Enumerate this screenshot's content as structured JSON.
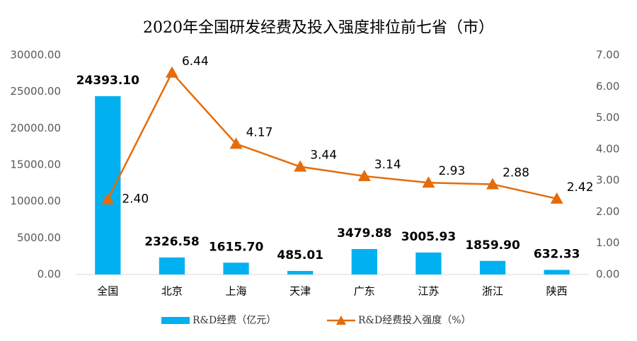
{
  "chart_data": {
    "type": "combo",
    "title": "2020年全国研发经费及投入强度排位前七省（市）",
    "categories": [
      "全国",
      "北京",
      "上海",
      "天津",
      "广东",
      "江苏",
      "浙江",
      "陕西"
    ],
    "series": [
      {
        "name": "R&D经费（亿元）",
        "type": "bar",
        "color": "#00b0f0",
        "values": [
          24393.1,
          2326.58,
          1615.7,
          485.01,
          3479.88,
          3005.93,
          1859.9,
          632.33
        ],
        "value_labels": [
          "24393.10",
          "2326.58",
          "1615.70",
          "485.01",
          "3479.88",
          "3005.93",
          "1859.90",
          "632.33"
        ]
      },
      {
        "name": "R&D经费投入强度（%）",
        "type": "line",
        "axis": "y2",
        "color": "#e46c0a",
        "values": [
          2.4,
          6.44,
          4.17,
          3.44,
          3.14,
          2.93,
          2.88,
          2.42
        ],
        "value_labels": [
          "2.40",
          "6.44",
          "4.17",
          "3.44",
          "3.14",
          "2.93",
          "2.88",
          "2.42"
        ]
      }
    ],
    "ylim": [
      0,
      30000
    ],
    "yticks": [
      {
        "value": 0,
        "label": "0.00"
      },
      {
        "value": 5000,
        "label": "5000.00"
      },
      {
        "value": 10000,
        "label": "10000.00"
      },
      {
        "value": 15000,
        "label": "15000.00"
      },
      {
        "value": 20000,
        "label": "20000.00"
      },
      {
        "value": 25000,
        "label": "25000.00"
      },
      {
        "value": 30000,
        "label": "30000.00"
      }
    ],
    "y2lim": [
      0,
      7
    ],
    "y2ticks": [
      {
        "value": 0,
        "label": "0.00"
      },
      {
        "value": 1,
        "label": "1.00"
      },
      {
        "value": 2,
        "label": "2.00"
      },
      {
        "value": 3,
        "label": "3.00"
      },
      {
        "value": 4,
        "label": "4.00"
      },
      {
        "value": 5,
        "label": "5.00"
      },
      {
        "value": 6,
        "label": "6.00"
      },
      {
        "value": 7,
        "label": "7.00"
      }
    ],
    "legend": "bottom",
    "grid": false
  }
}
